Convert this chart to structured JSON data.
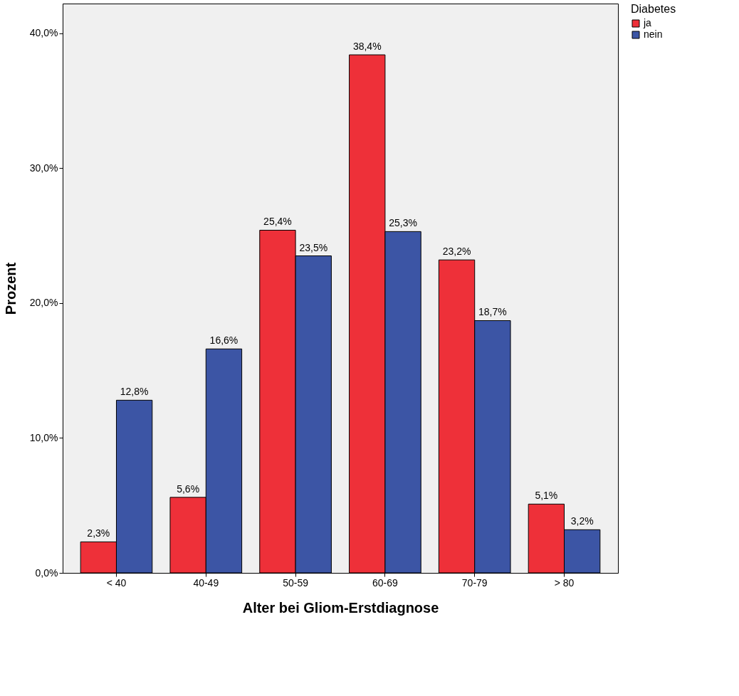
{
  "chart_data": {
    "type": "bar",
    "xlabel": "Alter bei Gliom-Erstdiagnose",
    "ylabel": "Prozent",
    "legend_title": "Diabetes",
    "legend": "top right",
    "grid": false,
    "categories": [
      "< 40",
      "40-49",
      "50-59",
      "60-69",
      "70-79",
      "> 80"
    ],
    "series": [
      {
        "name": "ja",
        "color": "#ee3039",
        "values": [
          2.3,
          5.6,
          25.4,
          38.4,
          23.2,
          5.1
        ],
        "value_labels": [
          "2,3%",
          "5,6%",
          "25,4%",
          "38,4%",
          "23,2%",
          "5,1%"
        ]
      },
      {
        "name": "nein",
        "color": "#3c55a5",
        "values": [
          12.8,
          16.6,
          23.5,
          25.3,
          18.7,
          3.2
        ],
        "value_labels": [
          "12,8%",
          "16,6%",
          "23,5%",
          "25,3%",
          "18,7%",
          "3,2%"
        ]
      }
    ],
    "ylim": [
      0,
      42.2
    ],
    "yticks": [
      {
        "value": 0,
        "label": "0,0%"
      },
      {
        "value": 10,
        "label": "10,0%"
      },
      {
        "value": 20,
        "label": "20,0%"
      },
      {
        "value": 30,
        "label": "30,0%"
      },
      {
        "value": 40,
        "label": "40,0%"
      }
    ]
  }
}
